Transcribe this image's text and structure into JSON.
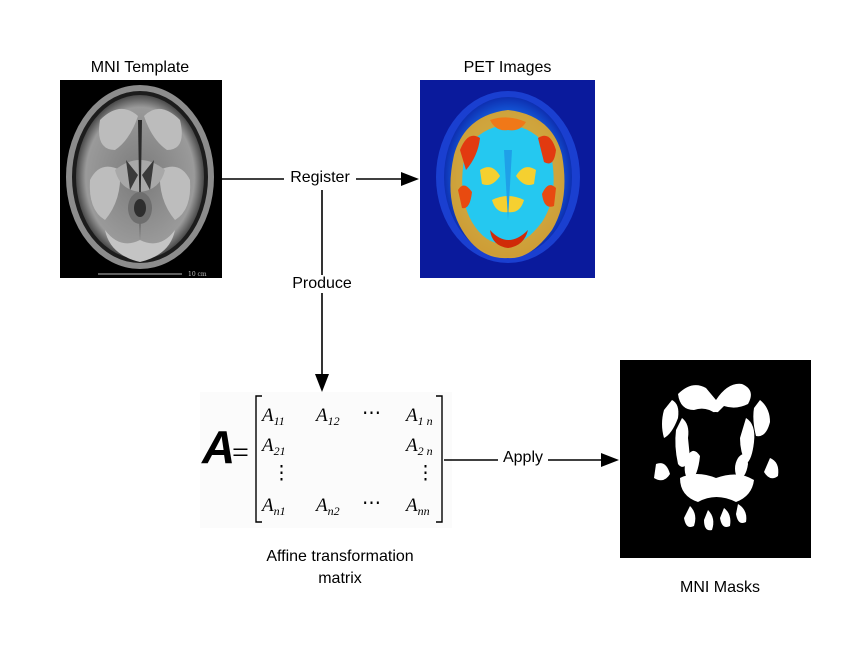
{
  "labels": {
    "mni_template": "MNI Template",
    "pet_images": "PET Images",
    "register": "Register",
    "produce": "Produce",
    "apply": "Apply",
    "affine_line1": "Affine transformation",
    "affine_line2": "matrix",
    "mni_masks": "MNI Masks",
    "scale_bar": "10 cm"
  },
  "matrix": {
    "symbol": "A",
    "equals": "=",
    "cells": {
      "a11_base": "A",
      "a11_sub": "11",
      "a12_base": "A",
      "a12_sub": "12",
      "a1n_base": "A",
      "a1n_sub": "1 n",
      "a21_base": "A",
      "a21_sub": "21",
      "a2n_base": "A",
      "a2n_sub": "2 n",
      "an1_base": "A",
      "an1_sub": "n1",
      "an2_base": "A",
      "an2_sub": "n2",
      "ann_base": "A",
      "ann_sub": "nn",
      "hdots": "⋯",
      "vdots": "⋮"
    }
  },
  "colors": {
    "pet_background": "#0a1a9c",
    "mask_background": "#000000",
    "mri_background": "#000000"
  }
}
